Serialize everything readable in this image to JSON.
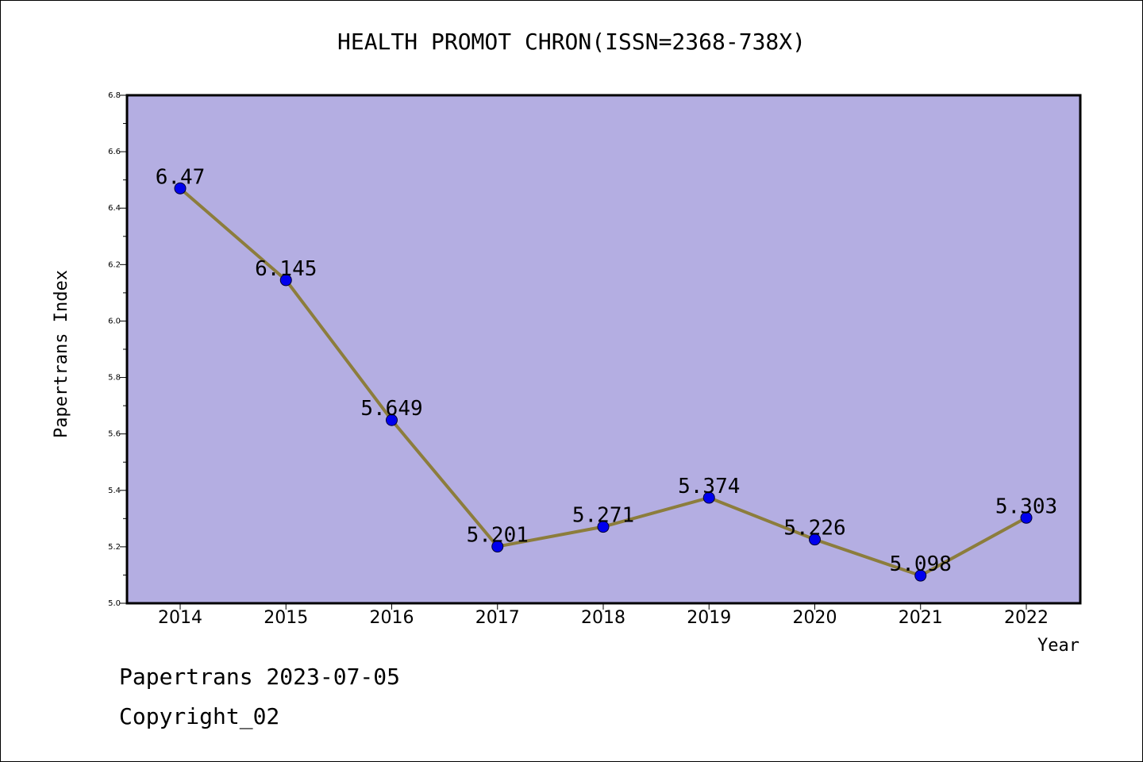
{
  "chart_data": {
    "type": "line",
    "title": "HEALTH PROMOT CHRON(ISSN=2368-738X)",
    "xlabel": "Year",
    "ylabel": "Papertrans Index",
    "categories": [
      "2014",
      "2015",
      "2016",
      "2017",
      "2018",
      "2019",
      "2020",
      "2021",
      "2022"
    ],
    "values": [
      6.47,
      6.145,
      5.649,
      5.201,
      5.271,
      5.374,
      5.226,
      5.098,
      5.303
    ],
    "data_labels": [
      "6.47",
      "6.145",
      "5.649",
      "5.201",
      "5.271",
      "5.374",
      "5.226",
      "5.098",
      "5.303"
    ],
    "ylim": [
      5.0,
      6.8
    ],
    "yticks": [
      "5.0",
      "5.2",
      "5.4",
      "5.6",
      "5.8",
      "6.0",
      "6.2",
      "6.4",
      "6.6",
      "6.8"
    ],
    "grid": false,
    "colors": {
      "plot_background": "#b4aee2",
      "line": "#8c7d3c",
      "marker": "#0000ee"
    }
  },
  "footer": {
    "line1": "Papertrans 2023-07-05",
    "line2": "Copyright_02"
  }
}
